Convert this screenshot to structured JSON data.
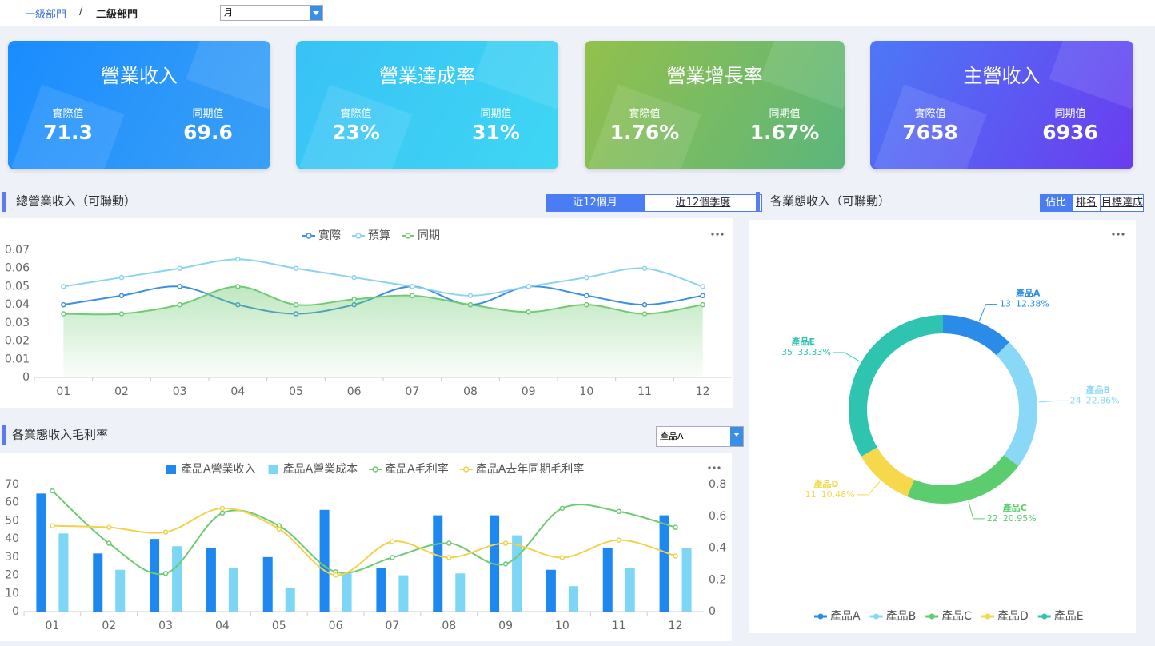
{
  "header": {
    "breadcrumb": [
      "一級部門",
      "二級部門"
    ],
    "separator": "/",
    "period_select": "月"
  },
  "kpis": [
    {
      "title": "營業收入",
      "actual_label": "實際值",
      "actual": "71.3",
      "prior_label": "同期值",
      "prior": "69.6"
    },
    {
      "title": "營業達成率",
      "actual_label": "實際值",
      "actual": "23%",
      "prior_label": "同期值",
      "prior": "31%"
    },
    {
      "title": "營業增長率",
      "actual_label": "實際值",
      "actual": "1.76%",
      "prior_label": "同期值",
      "prior": "1.67%"
    },
    {
      "title": "主營收入",
      "actual_label": "實際值",
      "actual": "7658",
      "prior_label": "同期值",
      "prior": "6936"
    }
  ],
  "tabs": {
    "revenue": [
      "近12個月",
      "近12個季度"
    ],
    "segment": [
      "佔比",
      "排名",
      "目標達成"
    ]
  },
  "product_select": "產品A",
  "chart_data": [
    {
      "type": "line",
      "title": "總營業收入（可聯動）",
      "categories": [
        "01",
        "02",
        "03",
        "04",
        "05",
        "06",
        "07",
        "08",
        "09",
        "10",
        "11",
        "12"
      ],
      "series": [
        {
          "name": "實際",
          "color": "#3d8fe0",
          "values": [
            0.04,
            0.045,
            0.05,
            0.04,
            0.035,
            0.04,
            0.05,
            0.04,
            0.05,
            0.045,
            0.04,
            0.045
          ]
        },
        {
          "name": "預算",
          "color": "#8cd3ef",
          "values": [
            0.05,
            0.055,
            0.06,
            0.065,
            0.06,
            0.055,
            0.05,
            0.045,
            0.05,
            0.055,
            0.06,
            0.05
          ]
        },
        {
          "name": "同期",
          "color": "#6fcb73",
          "area": true,
          "values": [
            0.035,
            0.035,
            0.04,
            0.05,
            0.04,
            0.043,
            0.045,
            0.04,
            0.036,
            0.04,
            0.035,
            0.04
          ]
        }
      ],
      "ylim": [
        0,
        0.07
      ],
      "yticks": [
        0,
        0.01,
        0.02,
        0.03,
        0.04,
        0.05,
        0.06,
        0.07
      ],
      "smooth": true,
      "grid": false
    },
    {
      "type": "bar",
      "title": "各業態收入毛利率",
      "categories": [
        "01",
        "02",
        "03",
        "04",
        "05",
        "06",
        "07",
        "08",
        "09",
        "10",
        "11",
        "12"
      ],
      "series": [
        {
          "name": "產品A營業收入",
          "type": "bar",
          "color": "#1e88f0",
          "values": [
            65,
            32,
            40,
            35,
            30,
            56,
            24,
            53,
            53,
            23,
            35,
            53
          ]
        },
        {
          "name": "產品A營業成本",
          "type": "bar",
          "color": "#7dd6f5",
          "values": [
            43,
            23,
            36,
            24,
            13,
            21,
            20,
            21,
            42,
            14,
            24,
            35
          ]
        },
        {
          "name": "產品A毛利率",
          "type": "line",
          "axis": "y2",
          "color": "#6fcb73",
          "values": [
            0.76,
            0.43,
            0.24,
            0.62,
            0.54,
            0.25,
            0.34,
            0.43,
            0.3,
            0.65,
            0.63,
            0.53
          ]
        },
        {
          "name": "產品A去年同期毛利率",
          "type": "line",
          "axis": "y2",
          "color": "#f2d24a",
          "values": [
            0.54,
            0.53,
            0.5,
            0.65,
            0.52,
            0.23,
            0.44,
            0.34,
            0.43,
            0.34,
            0.45,
            0.35
          ]
        }
      ],
      "ylim": [
        0,
        70
      ],
      "yticks": [
        0,
        10,
        20,
        30,
        40,
        50,
        60,
        70
      ],
      "y2lim": [
        0,
        0.8
      ],
      "y2ticks": [
        0,
        0.2,
        0.4,
        0.6,
        0.8
      ],
      "smooth": true,
      "grid": false
    },
    {
      "type": "pie",
      "title": "各業態收入（可聯動）",
      "donut": true,
      "categories": [
        "產品A",
        "產品B",
        "產品C",
        "產品D",
        "產品E"
      ],
      "values": [
        13,
        24,
        22,
        11,
        35
      ],
      "percent_labels": [
        "12.38%",
        "22.86%",
        "20.95%",
        "10.48%",
        "33.33%"
      ],
      "colors": [
        "#2a8ce8",
        "#8ad8f7",
        "#5ccd6e",
        "#f6d84a",
        "#2ec4b0"
      ]
    }
  ]
}
